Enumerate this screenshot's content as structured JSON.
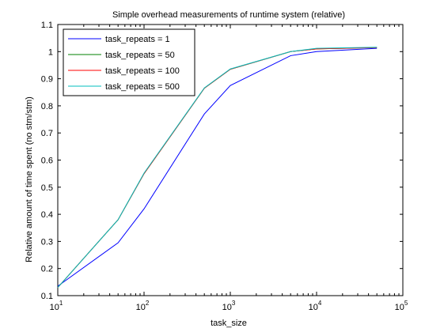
{
  "chart_data": {
    "type": "line",
    "title": "Simple overhead measurements of runtime system (relative)",
    "xlabel": "task_size",
    "ylabel": "Relative amount of time spent (no stm/stm)",
    "xscale": "log",
    "xlim": [
      10,
      100000
    ],
    "ylim": [
      0.1,
      1.1
    ],
    "grid": false,
    "legend_position": "top-left",
    "x_ticks": [
      {
        "value": 10,
        "base": "10",
        "exp": "1"
      },
      {
        "value": 100,
        "base": "10",
        "exp": "2"
      },
      {
        "value": 1000,
        "base": "10",
        "exp": "3"
      },
      {
        "value": 10000,
        "base": "10",
        "exp": "4"
      },
      {
        "value": 100000,
        "base": "10",
        "exp": "5"
      }
    ],
    "y_ticks": [
      {
        "value": 0.1,
        "label": "0.1"
      },
      {
        "value": 0.2,
        "label": "0.2"
      },
      {
        "value": 0.3,
        "label": "0.3"
      },
      {
        "value": 0.4,
        "label": "0.4"
      },
      {
        "value": 0.5,
        "label": "0.5"
      },
      {
        "value": 0.6,
        "label": "0.6"
      },
      {
        "value": 0.7,
        "label": "0.7"
      },
      {
        "value": 0.8,
        "label": "0.8"
      },
      {
        "value": 0.9,
        "label": "0.9"
      },
      {
        "value": 1.0,
        "label": "1"
      },
      {
        "value": 1.1,
        "label": "1.1"
      }
    ],
    "series": [
      {
        "name": "task_repeats = 1",
        "color": "#0000ff",
        "x": [
          10,
          50,
          100,
          500,
          1000,
          5000,
          10000,
          50000
        ],
        "y": [
          0.135,
          0.295,
          0.42,
          0.77,
          0.875,
          0.985,
          1.0,
          1.012
        ]
      },
      {
        "name": "task_repeats = 50",
        "color": "#008000",
        "x": [
          10,
          50,
          100,
          500,
          1000,
          5000,
          10000,
          50000
        ],
        "y": [
          0.13,
          0.38,
          0.55,
          0.865,
          0.935,
          1.0,
          1.01,
          1.015
        ]
      },
      {
        "name": "task_repeats = 100",
        "color": "#ff0000",
        "x": [
          10,
          50,
          100,
          500,
          1000,
          5000,
          10000,
          50000
        ],
        "y": [
          0.13,
          0.38,
          0.55,
          0.865,
          0.935,
          1.0,
          1.01,
          1.015
        ]
      },
      {
        "name": "task_repeats = 500",
        "color": "#00bfbf",
        "x": [
          10,
          50,
          100,
          500,
          1000,
          5000,
          10000,
          50000
        ],
        "y": [
          0.13,
          0.38,
          0.552,
          0.866,
          0.936,
          1.0,
          1.012,
          1.016
        ]
      }
    ]
  }
}
